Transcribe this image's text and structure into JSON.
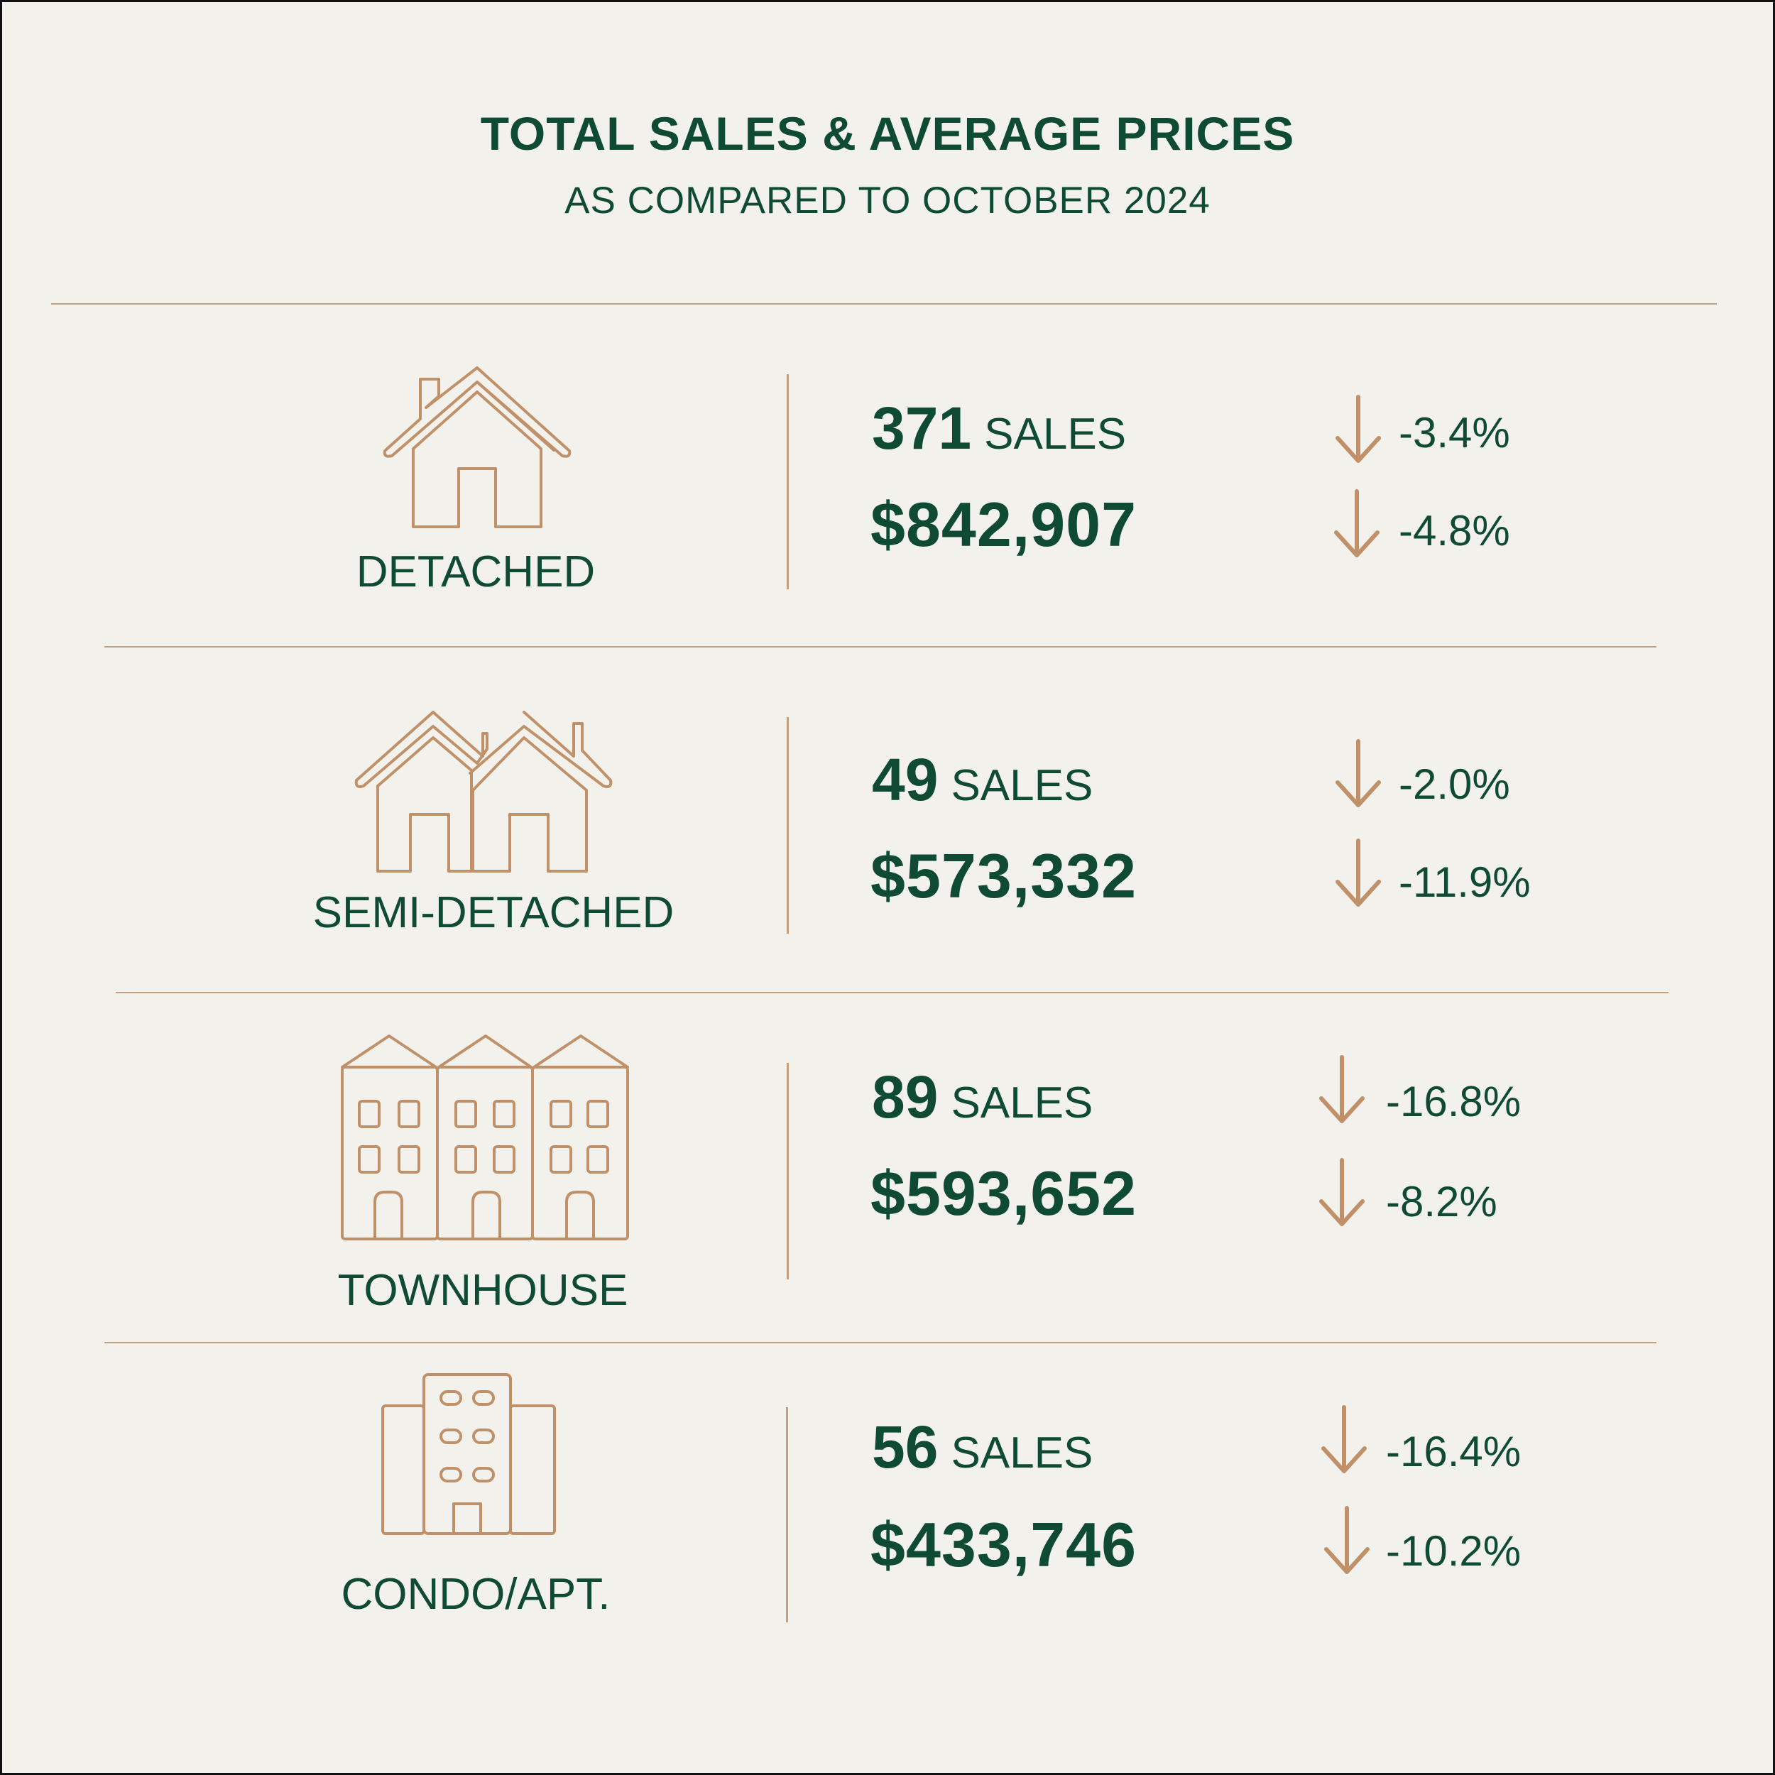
{
  "header": {
    "title": "TOTAL SALES & AVERAGE PRICES",
    "subtitle": "AS COMPARED TO OCTOBER 2024"
  },
  "colors": {
    "background": "#f3f1ec",
    "text": "#0f4a32",
    "accent": "#c09069",
    "divider": "#c4a07f"
  },
  "rows": [
    {
      "type": "DETACHED",
      "icon": "detached-house-icon",
      "sales_count": "371",
      "sales_unit": "SALES",
      "sales_change": "-3.4%",
      "avg_price": "$842,907",
      "price_change": "-4.8%",
      "trend_icon": "down-arrow-icon"
    },
    {
      "type": "SEMI-DETACHED",
      "icon": "semi-detached-houses-icon",
      "sales_count": "49",
      "sales_unit": "SALES",
      "sales_change": "-2.0%",
      "avg_price": "$573,332",
      "price_change": "-11.9%",
      "trend_icon": "down-arrow-icon"
    },
    {
      "type": "TOWNHOUSE",
      "icon": "townhouse-icon",
      "sales_count": "89",
      "sales_unit": "SALES",
      "sales_change": "-16.8%",
      "avg_price": "$593,652",
      "price_change": "-8.2%",
      "trend_icon": "down-arrow-icon"
    },
    {
      "type": "CONDO/APT.",
      "icon": "condo-building-icon",
      "sales_count": "56",
      "sales_unit": "SALES",
      "sales_change": "-16.4%",
      "avg_price": "$433,746",
      "price_change": "-10.2%",
      "trend_icon": "down-arrow-icon"
    }
  ]
}
